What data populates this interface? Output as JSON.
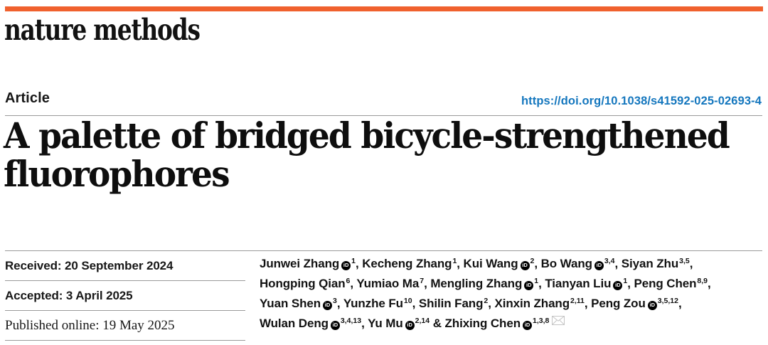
{
  "masthead": {
    "brand": "nature methods"
  },
  "article_header": {
    "type_label": "Article",
    "doi": "https://doi.org/10.1038/s41592-025-02693-4"
  },
  "title_lines": [
    "A palette of bridged bicycle-strengthened",
    "fluorophores"
  ],
  "dates": [
    {
      "label": "Received",
      "value": "20 September 2024",
      "serif": false
    },
    {
      "label": "Accepted",
      "value": "3 April 2025",
      "serif": false
    },
    {
      "label": "Published online",
      "value": "19 May 2025",
      "serif": true
    }
  ],
  "authors": {
    "orcid_icon_text": "iD",
    "email_icon_name": "envelope",
    "lines": [
      [
        {
          "name": "Junwei Zhang",
          "orcid": true,
          "sup": "1",
          "sep": ", "
        },
        {
          "name": "Kecheng Zhang",
          "orcid": false,
          "sup": "1",
          "sep": ", "
        },
        {
          "name": "Kui Wang",
          "orcid": true,
          "sup": "2",
          "sep": ", "
        },
        {
          "name": "Bo Wang",
          "orcid": true,
          "sup": "3,4",
          "sep": ", "
        },
        {
          "name": "Siyan Zhu",
          "orcid": false,
          "sup": "3,5",
          "sep": ","
        }
      ],
      [
        {
          "name": "Hongping Qian",
          "orcid": false,
          "sup": "6",
          "sep": ", "
        },
        {
          "name": "Yumiao Ma",
          "orcid": false,
          "sup": "7",
          "sep": ", "
        },
        {
          "name": "Mengling Zhang",
          "orcid": true,
          "sup": "1",
          "sep": ", "
        },
        {
          "name": "Tianyan Liu",
          "orcid": true,
          "sup": "1",
          "sep": ", "
        },
        {
          "name": "Peng Chen",
          "orcid": false,
          "sup": "8,9",
          "sep": ","
        }
      ],
      [
        {
          "name": "Yuan Shen",
          "orcid": true,
          "sup": "3",
          "sep": ", "
        },
        {
          "name": "Yunzhe Fu",
          "orcid": false,
          "sup": "10",
          "sep": ", "
        },
        {
          "name": "Shilin Fang",
          "orcid": false,
          "sup": "2",
          "sep": ", "
        },
        {
          "name": "Xinxin Zhang",
          "orcid": false,
          "sup": "2,11",
          "sep": ", "
        },
        {
          "name": "Peng Zou",
          "orcid": true,
          "sup": "3,5,12",
          "sep": ","
        }
      ],
      [
        {
          "name": "Wulan Deng",
          "orcid": true,
          "sup": "3,4,13",
          "sep": ", "
        },
        {
          "name": "Yu Mu",
          "orcid": true,
          "sup": "2,14",
          "sep": " & "
        },
        {
          "name": "Zhixing Chen",
          "orcid": true,
          "sup": "1,3,8",
          "sep": "",
          "email": true
        }
      ]
    ]
  },
  "colors": {
    "accent_bar": "#f0612e",
    "doi_link": "#1577be",
    "rule_grey": "#9a9a9a",
    "orcid_bg": "#000000",
    "envelope_grey": "#c6c6c6"
  }
}
